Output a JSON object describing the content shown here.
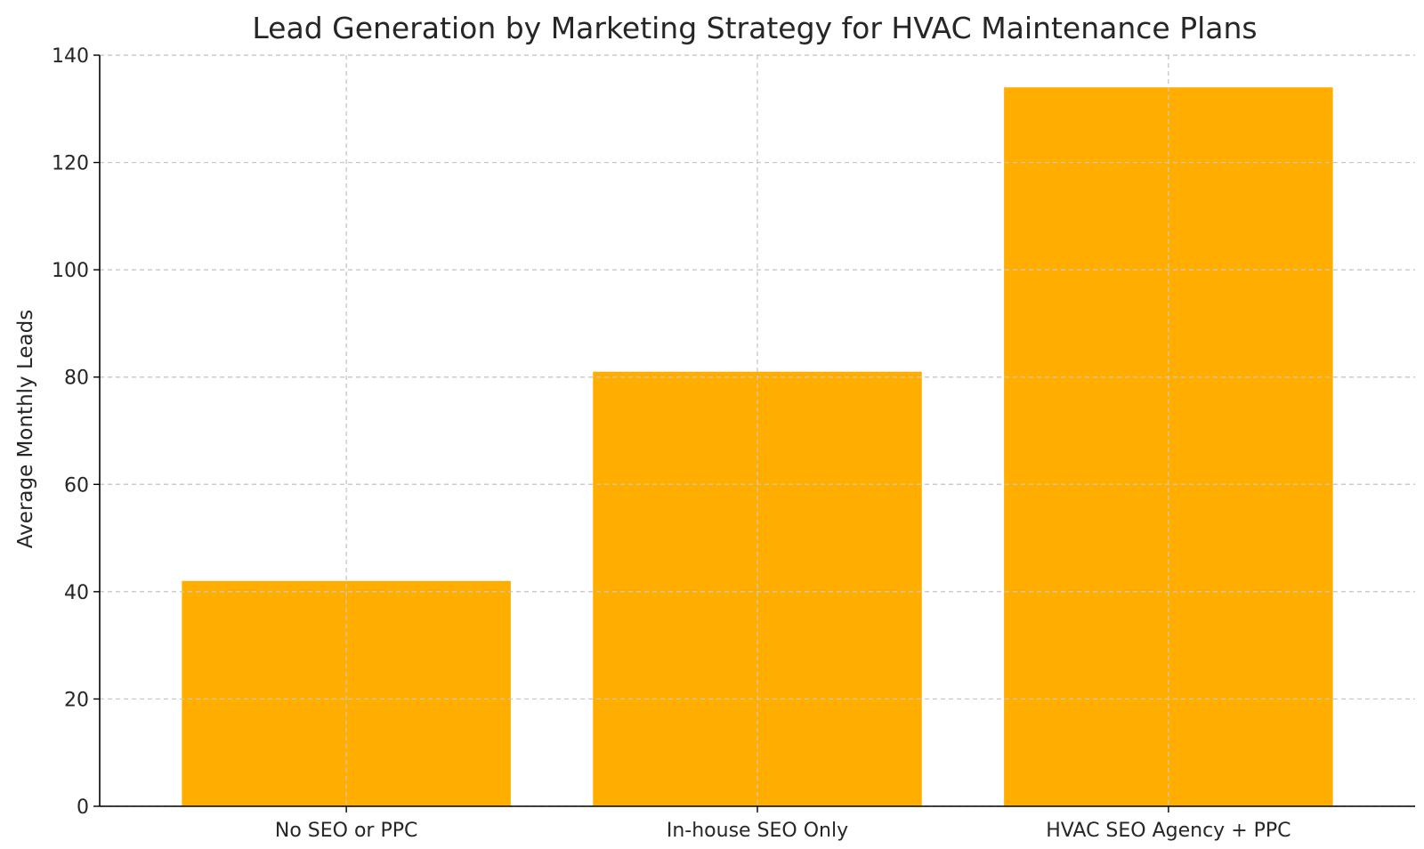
{
  "chart_data": {
    "type": "bar",
    "title": "Lead Generation by Marketing Strategy for HVAC Maintenance Plans",
    "xlabel": "",
    "ylabel": "Average Monthly Leads",
    "categories": [
      "No SEO or PPC",
      "In-house SEO Only",
      "HVAC SEO Agency + PPC"
    ],
    "values": [
      42,
      81,
      134
    ],
    "ylim": [
      0,
      140
    ],
    "yticks": [
      0,
      20,
      40,
      60,
      80,
      100,
      120,
      140
    ],
    "grid": true,
    "bar_color": "#FFAE00"
  }
}
